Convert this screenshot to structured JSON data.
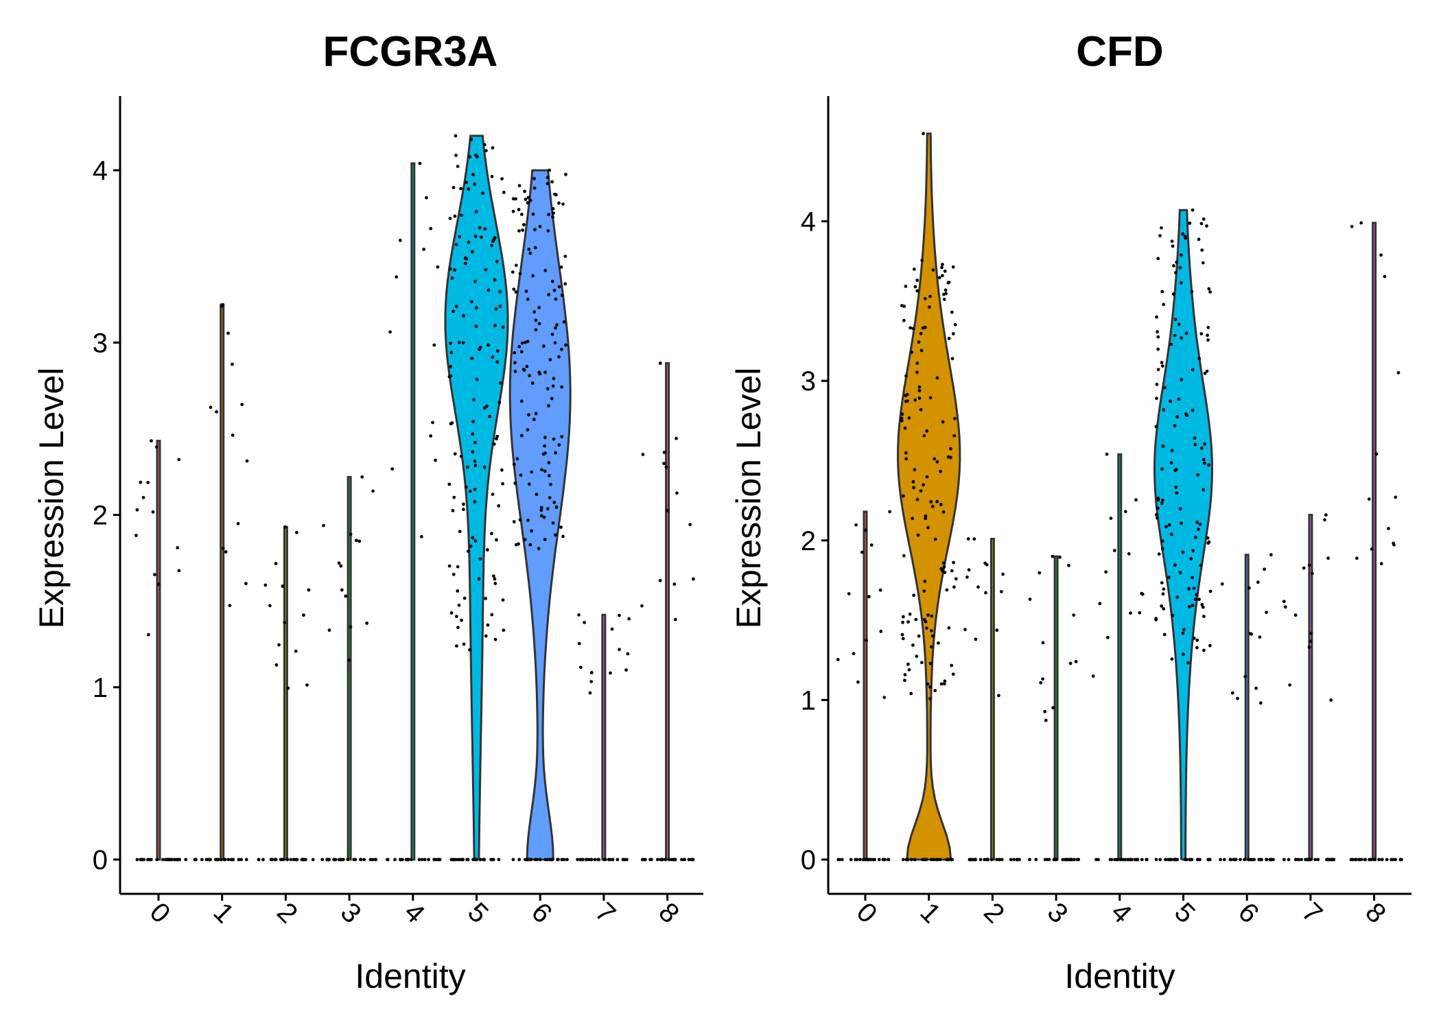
{
  "chart_data": [
    {
      "type": "violin",
      "title": "FCGR3A",
      "xlabel": "Identity",
      "ylabel": "Expression Level",
      "categories": [
        "0",
        "1",
        "2",
        "3",
        "4",
        "5",
        "6",
        "7",
        "8"
      ],
      "yticks": [
        "0",
        "1",
        "2",
        "3",
        "4"
      ],
      "ylim": [
        -0.2,
        4.4
      ],
      "series": [
        {
          "cat": "0",
          "max": 2.43,
          "shape": "spike",
          "color": "#F8766D"
        },
        {
          "cat": "1",
          "max": 3.22,
          "shape": "spike",
          "color": "#D39200"
        },
        {
          "cat": "2",
          "max": 1.93,
          "shape": "spike",
          "color": "#93AA00"
        },
        {
          "cat": "3",
          "max": 2.22,
          "shape": "spike",
          "color": "#00BA38"
        },
        {
          "cat": "4",
          "max": 4.04,
          "shape": "spike",
          "color": "#00C19F"
        },
        {
          "cat": "5",
          "max": 4.2,
          "shape": "high",
          "color": "#00B9E3"
        },
        {
          "cat": "6",
          "max": 4.0,
          "shape": "bimodal",
          "color": "#619CFF"
        },
        {
          "cat": "7",
          "max": 1.42,
          "shape": "spike",
          "color": "#DB72FB"
        },
        {
          "cat": "8",
          "max": 2.88,
          "shape": "spike",
          "color": "#FF61C3"
        }
      ]
    },
    {
      "type": "violin",
      "title": "CFD",
      "xlabel": "Identity",
      "ylabel": "Expression Level",
      "categories": [
        "0",
        "1",
        "2",
        "3",
        "4",
        "5",
        "6",
        "7",
        "8"
      ],
      "yticks": [
        "0",
        "1",
        "2",
        "3",
        "4"
      ],
      "ylim": [
        -0.22,
        4.6
      ],
      "series": [
        {
          "cat": "0",
          "max": 2.18,
          "shape": "spike",
          "color": "#F8766D"
        },
        {
          "cat": "1",
          "max": 4.55,
          "shape": "bimodal1",
          "color": "#D39200"
        },
        {
          "cat": "2",
          "max": 2.01,
          "shape": "spike",
          "color": "#93AA00"
        },
        {
          "cat": "3",
          "max": 1.9,
          "shape": "spike",
          "color": "#00BA38"
        },
        {
          "cat": "4",
          "max": 2.54,
          "shape": "spike",
          "color": "#00C19F"
        },
        {
          "cat": "5",
          "max": 4.07,
          "shape": "high5",
          "color": "#00B9E3"
        },
        {
          "cat": "6",
          "max": 1.91,
          "shape": "spike",
          "color": "#619CFF"
        },
        {
          "cat": "7",
          "max": 2.16,
          "shape": "spike",
          "color": "#DB72FB"
        },
        {
          "cat": "8",
          "max": 3.99,
          "shape": "spike",
          "color": "#FF61C3"
        }
      ]
    }
  ]
}
